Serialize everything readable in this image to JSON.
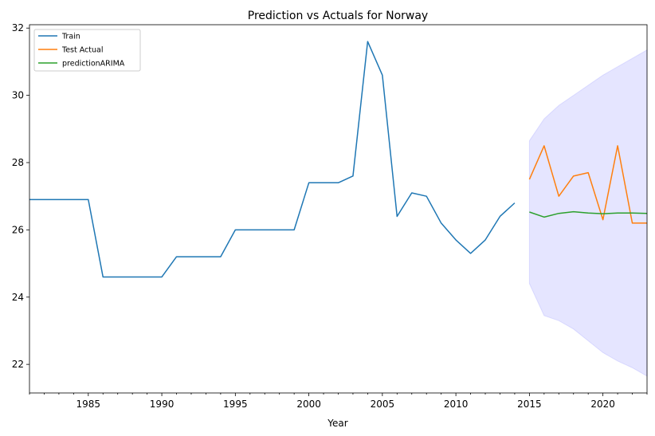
{
  "chart_data": {
    "type": "line",
    "title": "Prediction vs Actuals for Norway",
    "xlabel": "Year",
    "ylabel": "",
    "xlim": [
      1981,
      2023
    ],
    "ylim": [
      21.15,
      32.1
    ],
    "x_ticks": [
      1985,
      1990,
      1995,
      2000,
      2005,
      2010,
      2015,
      2020
    ],
    "y_ticks": [
      22,
      24,
      26,
      28,
      30,
      32
    ],
    "grid": false,
    "legend_position": "top-left",
    "series": [
      {
        "name": "Train",
        "color": "#1f77b4",
        "x": [
          1981,
          1982,
          1983,
          1984,
          1985,
          1986,
          1987,
          1988,
          1989,
          1990,
          1991,
          1992,
          1993,
          1994,
          1995,
          1996,
          1997,
          1998,
          1999,
          2000,
          2001,
          2002,
          2003,
          2004,
          2005,
          2006,
          2007,
          2008,
          2009,
          2010,
          2011,
          2012,
          2013,
          2014
        ],
        "y": [
          26.9,
          26.9,
          26.9,
          26.9,
          26.9,
          24.6,
          24.6,
          24.6,
          24.6,
          24.6,
          25.2,
          25.2,
          25.2,
          25.2,
          26.0,
          26.0,
          26.0,
          26.0,
          26.0,
          27.4,
          27.4,
          27.4,
          27.6,
          31.6,
          30.6,
          26.4,
          27.1,
          27.0,
          26.2,
          25.7,
          25.3,
          25.7,
          26.4,
          26.8
        ]
      },
      {
        "name": "Test Actual",
        "color": "#ff7f0e",
        "x": [
          2015,
          2016,
          2017,
          2018,
          2019,
          2020,
          2021,
          2022,
          2023
        ],
        "y": [
          27.5,
          28.5,
          27.0,
          27.6,
          27.7,
          26.3,
          28.5,
          26.2,
          26.2
        ]
      },
      {
        "name": "predictionARIMA",
        "color": "#2ca02c",
        "x": [
          2015,
          2016,
          2017,
          2018,
          2019,
          2020,
          2021,
          2022,
          2023
        ],
        "y": [
          26.53,
          26.38,
          26.49,
          26.54,
          26.5,
          26.48,
          26.5,
          26.5,
          26.49
        ]
      }
    ],
    "confidence_band": {
      "color": "#0000ff",
      "opacity": 0.1,
      "x": [
        2015,
        2016,
        2017,
        2018,
        2019,
        2020,
        2021,
        2022,
        2023
      ],
      "lower": [
        24.4,
        23.45,
        23.3,
        23.05,
        22.7,
        22.35,
        22.1,
        21.9,
        21.65
      ],
      "upper": [
        28.65,
        29.3,
        29.7,
        30.0,
        30.3,
        30.6,
        30.85,
        31.1,
        31.35
      ]
    }
  }
}
